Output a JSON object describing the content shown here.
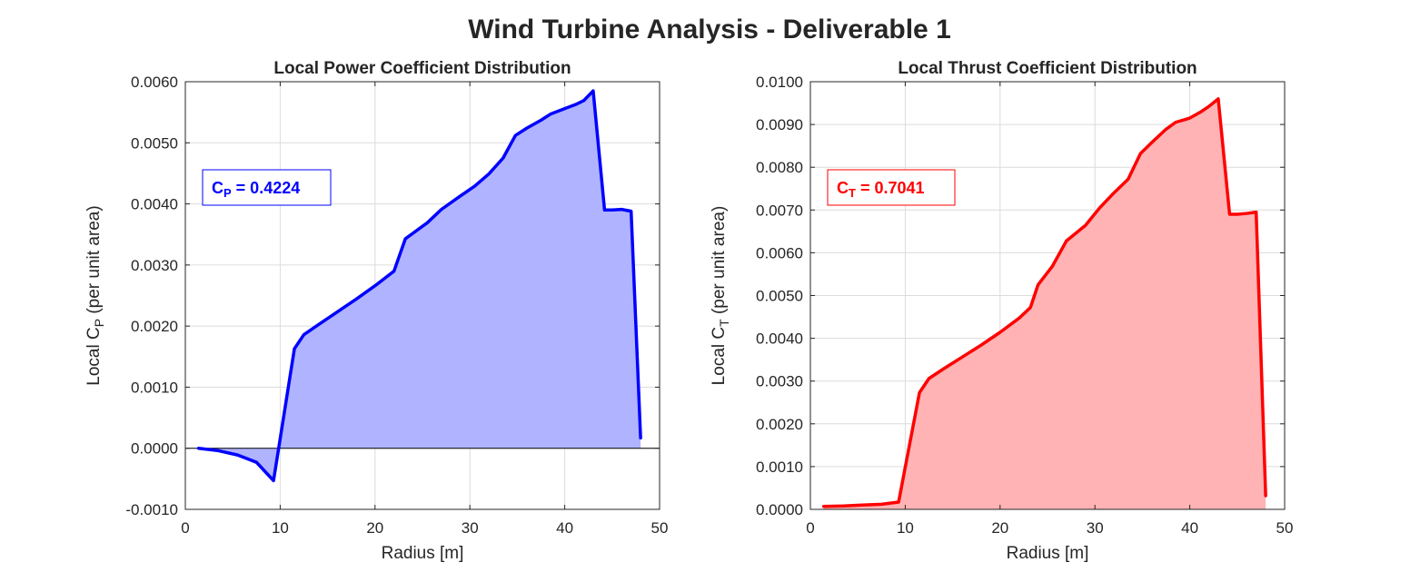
{
  "title": "Wind Turbine Analysis - Deliverable 1",
  "chart_data": [
    {
      "type": "area",
      "title": "Local Power Coefficient Distribution",
      "xlabel": "Radius [m]",
      "ylabel": "Local  C_P  (per  unit  area)",
      "ylabel_parts": {
        "pre": "Local  C",
        "sub": "P",
        "post": "  (per  unit  area)"
      },
      "xlim": [
        0,
        50
      ],
      "ylim": [
        -0.001,
        0.006
      ],
      "xticks": [
        0,
        10,
        20,
        30,
        40,
        50
      ],
      "xtick_labels": [
        "0",
        "10",
        "20",
        "30",
        "40",
        "50"
      ],
      "yticks": [
        -0.001,
        0,
        0.001,
        0.002,
        0.003,
        0.004,
        0.005,
        0.006
      ],
      "ytick_labels": [
        "-0.0010",
        "0.0000",
        "0.0010",
        "0.0020",
        "0.0030",
        "0.0040",
        "0.0050",
        "0.0060"
      ],
      "grid": true,
      "zero_line": true,
      "line_color": "#0000ff",
      "fill_color": "#b0b3ff",
      "annotation": {
        "symbol": "C",
        "sub": "P",
        "value": "=  0.4224",
        "color": "#0000ff"
      },
      "x": [
        1.4,
        3.5,
        5.5,
        7.5,
        9.3,
        11.5,
        12.5,
        14,
        16,
        18,
        20,
        22,
        23.2,
        24,
        25.5,
        27,
        29,
        30.5,
        32,
        33.5,
        34.8,
        36,
        37.5,
        38.5,
        40,
        41.2,
        42,
        43,
        44.2,
        45,
        46,
        47,
        48
      ],
      "y": [
        0,
        -4e-05,
        -0.00011,
        -0.00023,
        -0.00053,
        0.00163,
        0.00186,
        0.00202,
        0.00223,
        0.00244,
        0.00266,
        0.0029,
        0.00343,
        0.00352,
        0.00369,
        0.00391,
        0.00413,
        0.00429,
        0.00449,
        0.00475,
        0.00512,
        0.00524,
        0.00537,
        0.00547,
        0.00556,
        0.00563,
        0.00569,
        0.00585,
        0.0039,
        0.0039,
        0.00391,
        0.00388,
        0.00017
      ]
    },
    {
      "type": "area",
      "title": "Local Thrust Coefficient Distribution",
      "xlabel": "Radius [m]",
      "ylabel": "Local  C_T  (per  unit  area)",
      "ylabel_parts": {
        "pre": "Local  C",
        "sub": "T",
        "post": "  (per  unit  area)"
      },
      "xlim": [
        0,
        50
      ],
      "ylim": [
        0,
        0.01
      ],
      "xticks": [
        0,
        10,
        20,
        30,
        40,
        50
      ],
      "xtick_labels": [
        "0",
        "10",
        "20",
        "30",
        "40",
        "50"
      ],
      "yticks": [
        0,
        0.001,
        0.002,
        0.003,
        0.004,
        0.005,
        0.006,
        0.007,
        0.008,
        0.009,
        0.01
      ],
      "ytick_labels": [
        "0.0000",
        "0.0010",
        "0.0020",
        "0.0030",
        "0.0040",
        "0.0050",
        "0.0060",
        "0.0070",
        "0.0080",
        "0.0090",
        "0.0100"
      ],
      "grid": true,
      "zero_line": false,
      "line_color": "#ff0000",
      "fill_color": "#ffb3b5",
      "annotation": {
        "symbol": "C",
        "sub": "T",
        "value": "=  0.7041",
        "color": "#ff0000"
      },
      "x": [
        1.4,
        3.5,
        5.5,
        7.5,
        9.3,
        11.5,
        12.5,
        14,
        16,
        18,
        20,
        22,
        23.2,
        24,
        25.5,
        27,
        29,
        30.5,
        32,
        33.5,
        34.8,
        36,
        37.5,
        38.5,
        40,
        41.2,
        42,
        43,
        44.2,
        45,
        46,
        47,
        48
      ],
      "y": [
        7e-05,
        8e-05,
        0.0001,
        0.00012,
        0.00017,
        0.00273,
        0.00306,
        0.00328,
        0.00356,
        0.00384,
        0.00414,
        0.00447,
        0.00472,
        0.00525,
        0.00568,
        0.00628,
        0.00664,
        0.00705,
        0.0074,
        0.00772,
        0.00832,
        0.00858,
        0.00889,
        0.00905,
        0.00915,
        0.0093,
        0.00942,
        0.0096,
        0.0069,
        0.0069,
        0.00692,
        0.00695,
        0.00032
      ]
    }
  ]
}
